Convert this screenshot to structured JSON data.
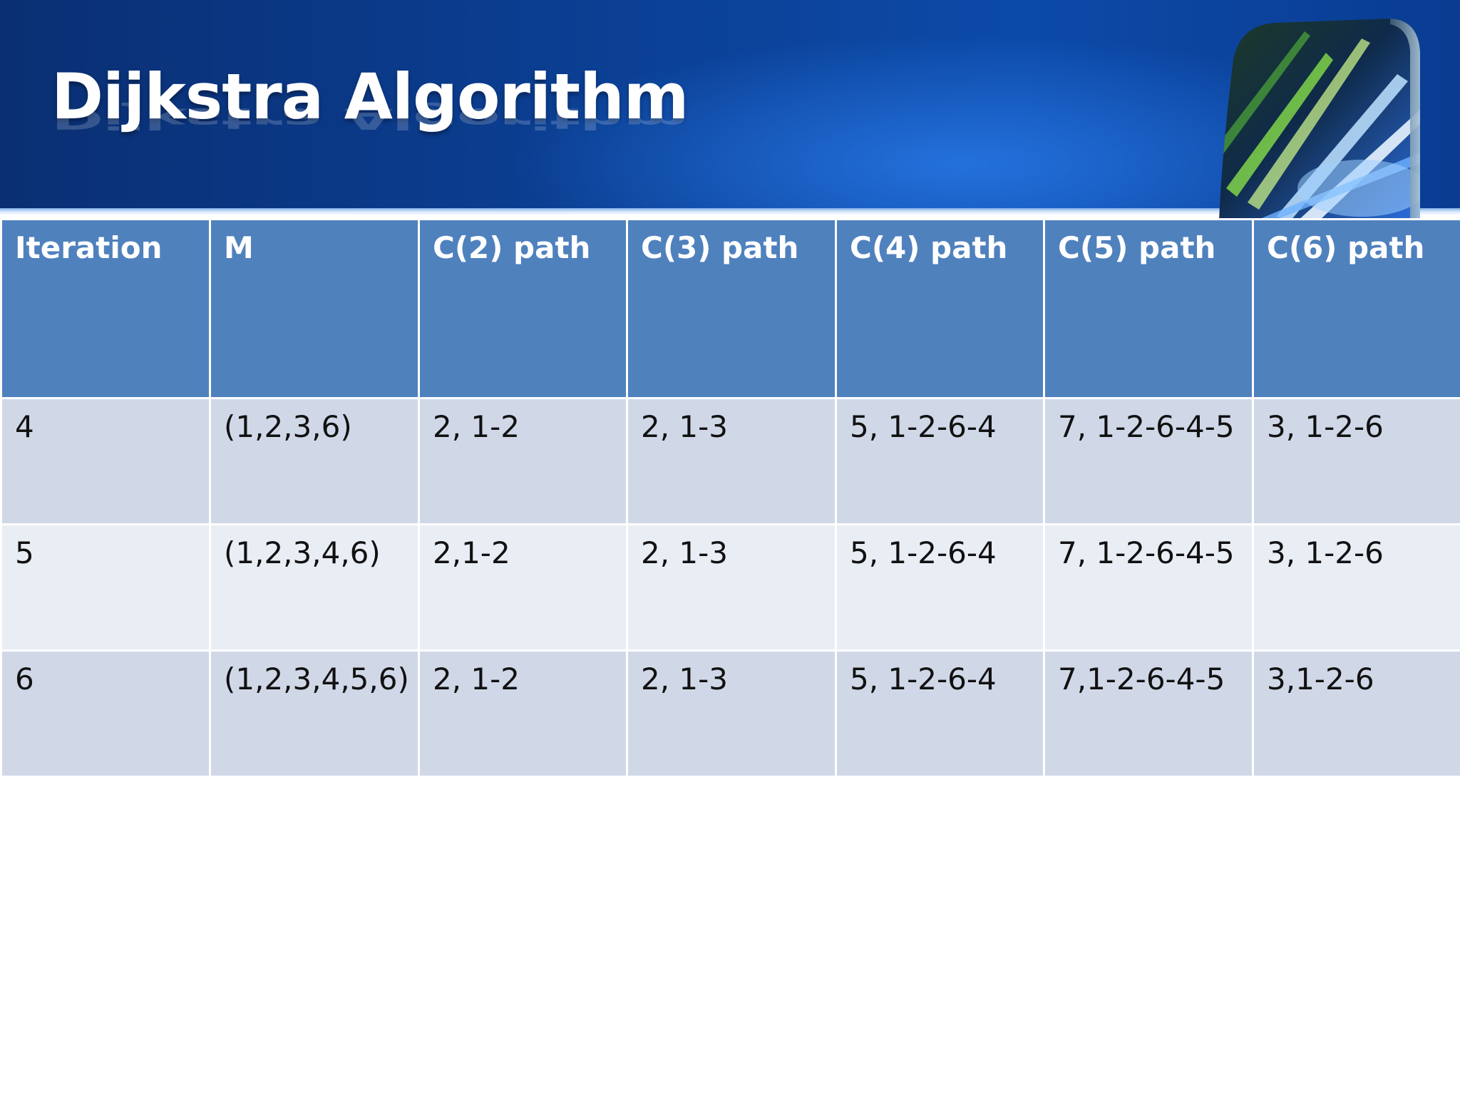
{
  "slide": {
    "title": "Dijkstra Algorithm"
  },
  "table": {
    "headers": [
      "Iteration",
      "M",
      "C(2) path",
      "C(3) path",
      "C(4) path",
      "C(5) path",
      "C(6) path"
    ],
    "rows": [
      [
        "4",
        "(1,2,3,6)",
        "2, 1-2",
        "2, 1-3",
        "5, 1-2-6-4",
        "7, 1-2-6-4-5",
        "3, 1-2-6"
      ],
      [
        "5",
        "(1,2,3,4,6)",
        "2,1-2",
        "2, 1-3",
        "5, 1-2-6-4",
        "7, 1-2-6-4-5",
        "3, 1-2-6"
      ],
      [
        "6",
        "(1,2,3,4,5,6)",
        "2, 1-2",
        "2, 1-3",
        "5, 1-2-6-4",
        "7,1-2-6-4-5",
        "3,1-2-6"
      ]
    ]
  },
  "colors": {
    "header_bg": "#0b3d8f",
    "table_header": "#4f81bd",
    "row_odd": "#d0d8e8",
    "row_even": "#e9edf4"
  },
  "icons": {
    "decor": "light-cube-icon"
  }
}
